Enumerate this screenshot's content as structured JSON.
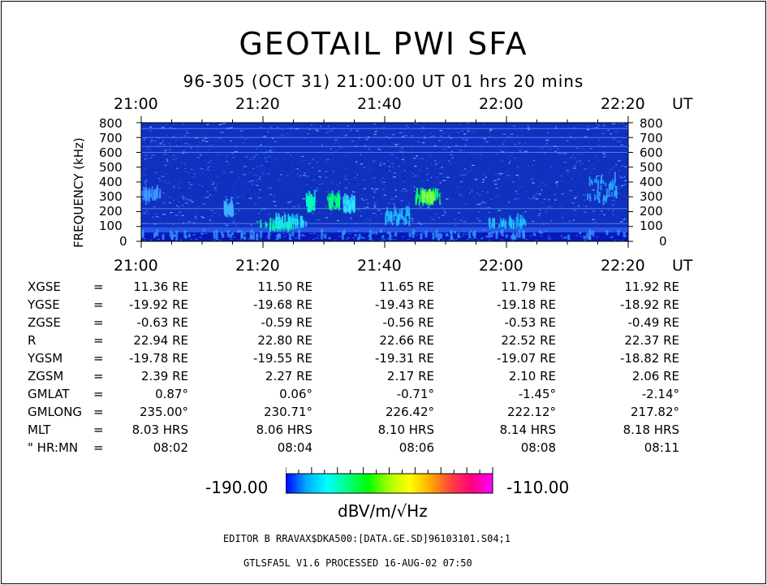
{
  "title": "GEOTAIL PWI SFA",
  "subtitle": "96-305 (OCT 31) 21:00:00 UT    01 hrs   20 mins",
  "chart_data": {
    "type": "heatmap",
    "ylabel": "FREQUENCY (kHz)",
    "x_unit": "UT",
    "x_ticks": [
      "21:00",
      "21:20",
      "21:40",
      "22:00",
      "22:20"
    ],
    "y_ticks": [
      800,
      700,
      600,
      500,
      400,
      300,
      200,
      100,
      0
    ],
    "ylim": [
      0,
      800
    ],
    "x_range": [
      "21:00",
      "22:20"
    ]
  },
  "colorbar": {
    "min_label": "-190.00",
    "max_label": "-110.00",
    "unit": "dBV/m/√Hz",
    "colors": [
      "#0000ff",
      "#00aaff",
      "#00ffff",
      "#00ff80",
      "#00ff00",
      "#aaff00",
      "#ffff00",
      "#ffaa00",
      "#ff4040",
      "#ff0080",
      "#ff00ff"
    ]
  },
  "ephemeris": {
    "labels": [
      "XGSE",
      "YGSE",
      "ZGSE",
      "R",
      "YGSM",
      "ZGSM",
      "GMLAT",
      "GMLONG",
      "MLT",
      "\" HR:MN"
    ],
    "eq": "=",
    "rows": [
      [
        "11.36 RE",
        "11.50 RE",
        "11.65 RE",
        "11.79 RE",
        "11.92 RE"
      ],
      [
        "-19.92 RE",
        "-19.68 RE",
        "-19.43 RE",
        "-19.18 RE",
        "-18.92 RE"
      ],
      [
        "-0.63 RE",
        "-0.59 RE",
        "-0.56 RE",
        "-0.53 RE",
        "-0.49 RE"
      ],
      [
        "22.94 RE",
        "22.80 RE",
        "22.66 RE",
        "22.52 RE",
        "22.37 RE"
      ],
      [
        "-19.78 RE",
        "-19.55 RE",
        "-19.31 RE",
        "-19.07 RE",
        "-18.82 RE"
      ],
      [
        "2.39 RE",
        "2.27 RE",
        "2.17 RE",
        "2.10 RE",
        "2.06 RE"
      ],
      [
        "0.87°",
        "0.06°",
        "-0.71°",
        "-1.45°",
        "-2.14°"
      ],
      [
        "235.00°",
        "230.71°",
        "226.42°",
        "222.12°",
        "217.82°"
      ],
      [
        "8.03 HRS",
        "8.06 HRS",
        "8.10 HRS",
        "8.14 HRS",
        "8.18 HRS"
      ],
      [
        "08:02",
        "08:04",
        "08:06",
        "08:08",
        "08:11"
      ]
    ]
  },
  "footer": {
    "line1": "EDITOR B     RRAVAX$DKA500:[DATA.GE.SD]96103101.S04;1",
    "line2": "GTLSFA5L V1.6       PROCESSED 16-AUG-02   07:50"
  }
}
